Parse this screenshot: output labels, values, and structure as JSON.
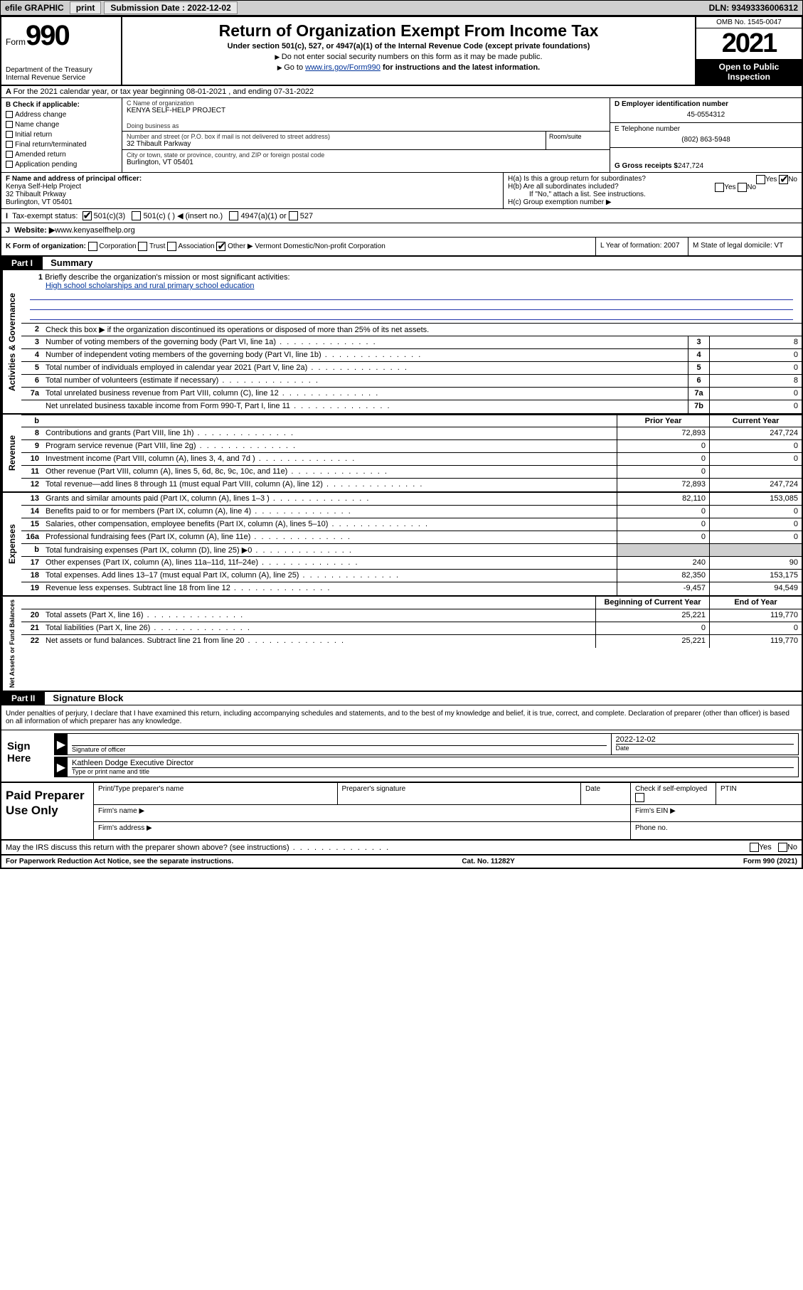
{
  "topbar": {
    "efile": "efile GRAPHIC",
    "print": "print",
    "sub_label": "Submission Date : ",
    "sub_date": "2022-12-02",
    "dln": "DLN: 93493336006312"
  },
  "header": {
    "form_word": "Form",
    "form_num": "990",
    "dept": "Department of the Treasury\nInternal Revenue Service",
    "title": "Return of Organization Exempt From Income Tax",
    "sub": "Under section 501(c), 527, or 4947(a)(1) of the Internal Revenue Code (except private foundations)",
    "note1": "Do not enter social security numbers on this form as it may be made public.",
    "note2_pre": "Go to ",
    "note2_link": "www.irs.gov/Form990",
    "note2_post": " for instructions and the latest information.",
    "omb": "OMB No. 1545-0047",
    "year": "2021",
    "open": "Open to Public Inspection"
  },
  "row_a": "For the 2021 calendar year, or tax year beginning 08-01-2021   , and ending 07-31-2022",
  "col_b": {
    "hdr": "B Check if applicable:",
    "items": [
      "Address change",
      "Name change",
      "Initial return",
      "Final return/terminated",
      "Amended return",
      "Application pending"
    ]
  },
  "col_c": {
    "name_lbl": "C Name of organization",
    "name": "KENYA SELF-HELP PROJECT",
    "dba_lbl": "Doing business as",
    "addr_lbl": "Number and street (or P.O. box if mail is not delivered to street address)",
    "addr": "32 Thibault Parkway",
    "suite_lbl": "Room/suite",
    "city_lbl": "City or town, state or province, country, and ZIP or foreign postal code",
    "city": "Burlington, VT  05401"
  },
  "col_d": {
    "d_lbl": "D Employer identification number",
    "d_val": "45-0554312",
    "e_lbl": "E Telephone number",
    "e_val": "(802) 863-5948",
    "g_lbl": "G Gross receipts $ ",
    "g_val": "247,724"
  },
  "row_f": {
    "f_lbl": "F Name and address of principal officer:",
    "f_name": "Kenya Self-Help Project",
    "f_addr1": "32 Thibault Prkway",
    "f_addr2": "Burlington, VT  05401",
    "ha": "H(a)  Is this a group return for subordinates?",
    "hb": "H(b)  Are all subordinates included?",
    "hb_note": "If \"No,\" attach a list. See instructions.",
    "hc": "H(c)  Group exemption number ▶",
    "yes": "Yes",
    "no": "No"
  },
  "row_i": {
    "lbl": "I",
    "txt": "Tax-exempt status:",
    "opt1": "501(c)(3)",
    "opt2": "501(c) (  ) ◀ (insert no.)",
    "opt3": "4947(a)(1) or",
    "opt4": "527"
  },
  "row_j": {
    "lbl": "J",
    "txt": "Website: ▶ ",
    "val": "www.kenyaselfhelp.org"
  },
  "row_k": {
    "k": "K Form of organization:",
    "opts": [
      "Corporation",
      "Trust",
      "Association",
      "Other ▶"
    ],
    "other": "Vermont Domestic/Non-profit Corporation",
    "l": "L Year of formation: 2007",
    "m": "M State of legal domicile: VT"
  },
  "parts": {
    "p1": "Part I",
    "p1_title": "Summary",
    "p2": "Part II",
    "p2_title": "Signature Block"
  },
  "summary": {
    "line1": "Briefly describe the organization's mission or most significant activities:",
    "line1_val": "High school scholarships and rural primary school education",
    "line2": "Check this box ▶       if the organization discontinued its operations or disposed of more than 25% of its net assets.",
    "hdr_prior": "Prior Year",
    "hdr_curr": "Current Year",
    "hdr_beg": "Beginning of Current Year",
    "hdr_end": "End of Year"
  },
  "gov_lines": [
    {
      "n": "3",
      "t": "Number of voting members of the governing body (Part VI, line 1a)",
      "box": "3",
      "v": "8"
    },
    {
      "n": "4",
      "t": "Number of independent voting members of the governing body (Part VI, line 1b)",
      "box": "4",
      "v": "0"
    },
    {
      "n": "5",
      "t": "Total number of individuals employed in calendar year 2021 (Part V, line 2a)",
      "box": "5",
      "v": "0"
    },
    {
      "n": "6",
      "t": "Total number of volunteers (estimate if necessary)",
      "box": "6",
      "v": "8"
    },
    {
      "n": "7a",
      "t": "Total unrelated business revenue from Part VIII, column (C), line 12",
      "box": "7a",
      "v": "0"
    },
    {
      "n": "",
      "t": "Net unrelated business taxable income from Form 990-T, Part I, line 11",
      "box": "7b",
      "v": "0"
    }
  ],
  "rev_lines": [
    {
      "n": "8",
      "t": "Contributions and grants (Part VIII, line 1h)",
      "p": "72,893",
      "c": "247,724"
    },
    {
      "n": "9",
      "t": "Program service revenue (Part VIII, line 2g)",
      "p": "0",
      "c": "0"
    },
    {
      "n": "10",
      "t": "Investment income (Part VIII, column (A), lines 3, 4, and 7d )",
      "p": "0",
      "c": "0"
    },
    {
      "n": "11",
      "t": "Other revenue (Part VIII, column (A), lines 5, 6d, 8c, 9c, 10c, and 11e)",
      "p": "0",
      "c": ""
    },
    {
      "n": "12",
      "t": "Total revenue—add lines 8 through 11 (must equal Part VIII, column (A), line 12)",
      "p": "72,893",
      "c": "247,724"
    }
  ],
  "exp_lines": [
    {
      "n": "13",
      "t": "Grants and similar amounts paid (Part IX, column (A), lines 1–3 )",
      "p": "82,110",
      "c": "153,085"
    },
    {
      "n": "14",
      "t": "Benefits paid to or for members (Part IX, column (A), line 4)",
      "p": "0",
      "c": "0"
    },
    {
      "n": "15",
      "t": "Salaries, other compensation, employee benefits (Part IX, column (A), lines 5–10)",
      "p": "0",
      "c": "0"
    },
    {
      "n": "16a",
      "t": "Professional fundraising fees (Part IX, column (A), line 11e)",
      "p": "0",
      "c": "0"
    },
    {
      "n": "b",
      "t": "Total fundraising expenses (Part IX, column (D), line 25) ▶0",
      "p": "",
      "c": "",
      "shade": true
    },
    {
      "n": "17",
      "t": "Other expenses (Part IX, column (A), lines 11a–11d, 11f–24e)",
      "p": "240",
      "c": "90"
    },
    {
      "n": "18",
      "t": "Total expenses. Add lines 13–17 (must equal Part IX, column (A), line 25)",
      "p": "82,350",
      "c": "153,175"
    },
    {
      "n": "19",
      "t": "Revenue less expenses. Subtract line 18 from line 12",
      "p": "-9,457",
      "c": "94,549"
    }
  ],
  "net_lines": [
    {
      "n": "20",
      "t": "Total assets (Part X, line 16)",
      "p": "25,221",
      "c": "119,770"
    },
    {
      "n": "21",
      "t": "Total liabilities (Part X, line 26)",
      "p": "0",
      "c": "0"
    },
    {
      "n": "22",
      "t": "Net assets or fund balances. Subtract line 21 from line 20",
      "p": "25,221",
      "c": "119,770"
    }
  ],
  "side_labels": {
    "gov": "Activities & Governance",
    "rev": "Revenue",
    "exp": "Expenses",
    "net": "Net Assets or Fund Balances"
  },
  "sig": {
    "pen": "Under penalties of perjury, I declare that I have examined this return, including accompanying schedules and statements, and to the best of my knowledge and belief, it is true, correct, and complete. Declaration of preparer (other than officer) is based on all information of which preparer has any knowledge.",
    "sign_here": "Sign Here",
    "sig_officer": "Signature of officer",
    "date": "Date",
    "date_val": "2022-12-02",
    "name": "Kathleen Dodge  Executive Director",
    "name_lbl": "Type or print name and title"
  },
  "paid": {
    "title": "Paid Preparer Use Only",
    "h1": "Print/Type preparer's name",
    "h2": "Preparer's signature",
    "h3": "Date",
    "h4": "Check        if self-employed",
    "h5": "PTIN",
    "firm_name": "Firm's name    ▶",
    "firm_ein": "Firm's EIN ▶",
    "firm_addr": "Firm's address ▶",
    "phone": "Phone no."
  },
  "may": {
    "txt": "May the IRS discuss this return with the preparer shown above? (see instructions)",
    "yes": "Yes",
    "no": "No"
  },
  "footer": {
    "left": "For Paperwork Reduction Act Notice, see the separate instructions.",
    "mid": "Cat. No. 11282Y",
    "right": "Form 990 (2021)"
  }
}
